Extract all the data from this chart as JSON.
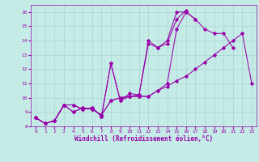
{
  "xlabel": "Windchill (Refroidissement éolien,°C)",
  "xlim": [
    -0.5,
    23.5
  ],
  "ylim": [
    8,
    16.5
  ],
  "xticks": [
    0,
    1,
    2,
    3,
    4,
    5,
    6,
    7,
    8,
    9,
    10,
    11,
    12,
    13,
    14,
    15,
    16,
    17,
    18,
    19,
    20,
    21,
    22,
    23
  ],
  "yticks": [
    8,
    9,
    10,
    11,
    12,
    13,
    14,
    15,
    16
  ],
  "background_color": "#c5ebe7",
  "grid_color": "#aed8d3",
  "line_color": "#9900aa",
  "series1_x": [
    0,
    1,
    2,
    3,
    4,
    5,
    6,
    7,
    8,
    9,
    10,
    11,
    12,
    13,
    14,
    15,
    16,
    17,
    18,
    19,
    20,
    21,
    22,
    23
  ],
  "series1_y": [
    8.6,
    8.2,
    8.4,
    9.5,
    9.0,
    9.3,
    9.2,
    8.8,
    9.8,
    10.0,
    10.1,
    10.1,
    10.1,
    10.5,
    10.8,
    11.2,
    11.5,
    12.0,
    12.5,
    13.0,
    13.5,
    14.0,
    14.5,
    11.0
  ],
  "series2_x": [
    0,
    1,
    2,
    3,
    4,
    5,
    6,
    7,
    8,
    9,
    10,
    11,
    12,
    13,
    14,
    15,
    16,
    17,
    18,
    19,
    20,
    21
  ],
  "series2_y": [
    8.6,
    8.2,
    8.4,
    9.5,
    9.0,
    9.3,
    9.2,
    8.8,
    9.8,
    10.0,
    10.1,
    10.1,
    10.1,
    10.5,
    11.0,
    14.8,
    16.0,
    15.5,
    14.8,
    14.5,
    14.5,
    13.5
  ],
  "series3_x": [
    0,
    1,
    2,
    3,
    4,
    5,
    6,
    7,
    8,
    9,
    10,
    11,
    12,
    13,
    14,
    15,
    16,
    17
  ],
  "series3_y": [
    8.6,
    8.2,
    8.4,
    9.5,
    9.5,
    9.2,
    9.3,
    8.7,
    12.4,
    9.8,
    10.1,
    10.2,
    14.0,
    13.5,
    14.0,
    16.0,
    16.0,
    15.5
  ],
  "series4_x": [
    0,
    1,
    2,
    3,
    4,
    5,
    6,
    7,
    8,
    9,
    10,
    11,
    12,
    13,
    14,
    15,
    16
  ],
  "series4_y": [
    8.6,
    8.2,
    8.4,
    9.5,
    9.5,
    9.2,
    9.3,
    8.7,
    12.4,
    9.8,
    10.3,
    10.2,
    13.8,
    13.5,
    13.8,
    15.5,
    16.1
  ]
}
